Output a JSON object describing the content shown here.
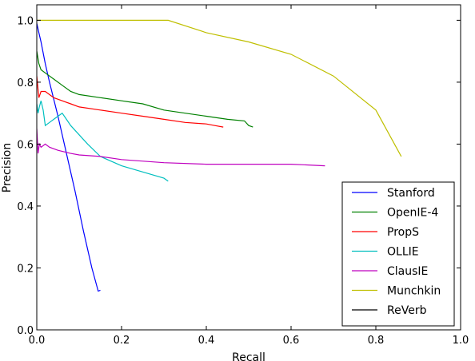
{
  "chart_data": {
    "type": "line",
    "title": "",
    "xlabel": "Recall",
    "ylabel": "Precision",
    "xlim": [
      0.0,
      1.0
    ],
    "ylim": [
      0.0,
      1.05
    ],
    "xticks": [
      "0.0",
      "0.2",
      "0.4",
      "0.6",
      "0.8",
      "1.0"
    ],
    "yticks": [
      "0.0",
      "0.2",
      "0.4",
      "0.6",
      "0.8",
      "1.0"
    ],
    "grid": false,
    "legend_position": "lower-right",
    "series": [
      {
        "name": "Stanford",
        "color": "#0000ff",
        "x": [
          0.0,
          0.005,
          0.01,
          0.02,
          0.03,
          0.05,
          0.07,
          0.09,
          0.11,
          0.13,
          0.145,
          0.15
        ],
        "y": [
          0.99,
          0.96,
          0.93,
          0.86,
          0.8,
          0.69,
          0.57,
          0.45,
          0.32,
          0.2,
          0.125,
          0.128
        ]
      },
      {
        "name": "OpenIE-4",
        "color": "#008000",
        "x": [
          0.0,
          0.005,
          0.01,
          0.02,
          0.04,
          0.06,
          0.08,
          0.1,
          0.15,
          0.2,
          0.25,
          0.3,
          0.35,
          0.4,
          0.45,
          0.49,
          0.5,
          0.51
        ],
        "y": [
          0.9,
          0.86,
          0.84,
          0.83,
          0.81,
          0.79,
          0.77,
          0.76,
          0.75,
          0.74,
          0.73,
          0.71,
          0.7,
          0.69,
          0.68,
          0.675,
          0.66,
          0.655
        ]
      },
      {
        "name": "PropS",
        "color": "#ff0000",
        "x": [
          0.0,
          0.005,
          0.01,
          0.02,
          0.04,
          0.06,
          0.08,
          0.1,
          0.15,
          0.2,
          0.25,
          0.3,
          0.35,
          0.4,
          0.42,
          0.44
        ],
        "y": [
          0.82,
          0.75,
          0.77,
          0.77,
          0.75,
          0.74,
          0.73,
          0.72,
          0.71,
          0.7,
          0.69,
          0.68,
          0.67,
          0.665,
          0.66,
          0.655
        ]
      },
      {
        "name": "OLLIE",
        "color": "#00bfbf",
        "x": [
          0.0,
          0.003,
          0.006,
          0.01,
          0.015,
          0.02,
          0.03,
          0.04,
          0.05,
          0.06,
          0.07,
          0.08,
          0.1,
          0.12,
          0.15,
          0.2,
          0.25,
          0.3,
          0.31
        ],
        "y": [
          0.73,
          0.7,
          0.72,
          0.74,
          0.71,
          0.66,
          0.67,
          0.68,
          0.69,
          0.7,
          0.68,
          0.66,
          0.63,
          0.6,
          0.56,
          0.53,
          0.51,
          0.49,
          0.48
        ]
      },
      {
        "name": "ClausIE",
        "color": "#bf00bf",
        "x": [
          0.0,
          0.003,
          0.006,
          0.01,
          0.02,
          0.03,
          0.05,
          0.08,
          0.1,
          0.15,
          0.2,
          0.3,
          0.4,
          0.5,
          0.6,
          0.68
        ],
        "y": [
          0.65,
          0.57,
          0.6,
          0.59,
          0.6,
          0.59,
          0.58,
          0.57,
          0.565,
          0.56,
          0.55,
          0.54,
          0.535,
          0.535,
          0.535,
          0.53
        ]
      },
      {
        "name": "Munchkin",
        "color": "#bfbf00",
        "x": [
          0.0,
          0.1,
          0.2,
          0.3,
          0.31,
          0.4,
          0.5,
          0.6,
          0.7,
          0.8,
          0.86
        ],
        "y": [
          1.0,
          1.0,
          1.0,
          1.0,
          1.0,
          0.96,
          0.93,
          0.89,
          0.82,
          0.71,
          0.56
        ]
      },
      {
        "name": "ReVerb",
        "color": "#000000",
        "x": [],
        "y": []
      }
    ]
  }
}
